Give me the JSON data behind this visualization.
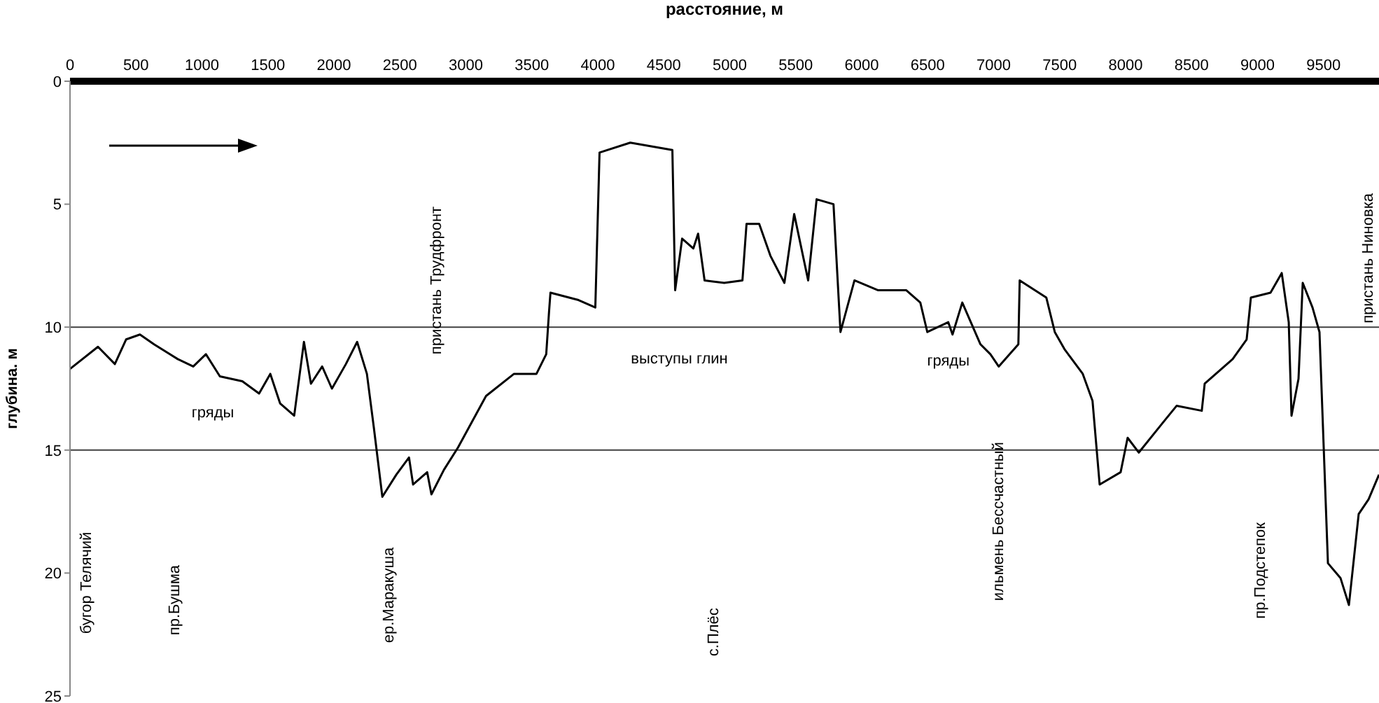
{
  "chart_data": {
    "type": "line",
    "xlabel": "расстояние, м",
    "ylabel": "глубина. м",
    "x": [
      0,
      212,
      340,
      425,
      530,
      637,
      817,
      934,
      1030,
      1136,
      1306,
      1433,
      1518,
      1592,
      1699,
      1773,
      1826,
      1911,
      1985,
      2091,
      2176,
      2250,
      2303,
      2367,
      2473,
      2569,
      2600,
      2707,
      2739,
      2834,
      2940,
      3153,
      3365,
      3535,
      3609,
      3630,
      3641,
      3854,
      3981,
      4013,
      4246,
      4565,
      4586,
      4639,
      4724,
      4760,
      4809,
      4958,
      5096,
      5127,
      5223,
      5308,
      5414,
      5488,
      5594,
      5658,
      5786,
      5839,
      5945,
      6125,
      6338,
      6444,
      6497,
      6656,
      6688,
      6762,
      6900,
      6975,
      7038,
      7187,
      7197,
      7399,
      7463,
      7537,
      7675,
      7749,
      7803,
      7962,
      8015,
      8100,
      8280,
      8386,
      8577,
      8599,
      8811,
      8917,
      8949,
      9098,
      9183,
      9236,
      9257,
      9310,
      9342,
      9416,
      9469,
      9501,
      9533,
      9628,
      9692,
      9766,
      9841,
      9920
    ],
    "series": [
      {
        "color": "#000000",
        "values": [
          11.7,
          10.8,
          11.5,
          10.5,
          10.3,
          10.7,
          11.3,
          11.6,
          11.1,
          12.0,
          12.2,
          12.7,
          11.9,
          13.1,
          13.6,
          10.6,
          12.3,
          11.6,
          12.5,
          11.5,
          10.6,
          11.9,
          14.1,
          16.9,
          16.0,
          15.3,
          16.4,
          15.9,
          16.8,
          15.8,
          14.9,
          12.8,
          11.9,
          11.9,
          11.1,
          9.4,
          8.6,
          8.9,
          9.2,
          2.9,
          2.5,
          2.8,
          8.5,
          6.4,
          6.8,
          6.2,
          8.1,
          8.2,
          8.1,
          5.8,
          5.8,
          7.1,
          8.2,
          5.4,
          8.1,
          4.8,
          5.0,
          10.2,
          8.1,
          8.5,
          8.5,
          9.0,
          10.2,
          9.8,
          10.3,
          9.0,
          10.7,
          11.1,
          11.6,
          10.7,
          8.1,
          8.8,
          10.2,
          10.9,
          11.9,
          13.0,
          16.4,
          15.9,
          14.5,
          15.1,
          13.9,
          13.2,
          13.4,
          12.3,
          11.3,
          10.5,
          8.8,
          8.6,
          7.8,
          9.8,
          13.6,
          12.1,
          8.2,
          9.2,
          10.2,
          14.9,
          19.6,
          20.2,
          21.3,
          17.6,
          17.0,
          16.0
        ]
      }
    ],
    "xlim": [
      0,
      9920
    ],
    "xticks": [
      0,
      500,
      1000,
      1500,
      2000,
      2500,
      3000,
      3500,
      4000,
      4500,
      5000,
      5500,
      6000,
      6500,
      7000,
      7500,
      8000,
      8500,
      9000,
      9500
    ],
    "ylim": [
      25,
      0
    ],
    "yticks": [
      0,
      5,
      10,
      15,
      20,
      25
    ],
    "ref_lines": [
      {
        "axis": "y",
        "value": 10,
        "color": "#404040"
      },
      {
        "axis": "y",
        "value": 15,
        "color": "#404040"
      }
    ],
    "annotations": [
      "бугор Телячий",
      "гряды",
      "пр.Бушма",
      "ер.Маракуша",
      "пристань Трудфронт",
      "выступы глин",
      "с.Плёс",
      "гряды",
      "ильмень Бессчастный",
      "пр.Подстепок",
      "пристань Ниновка"
    ]
  }
}
